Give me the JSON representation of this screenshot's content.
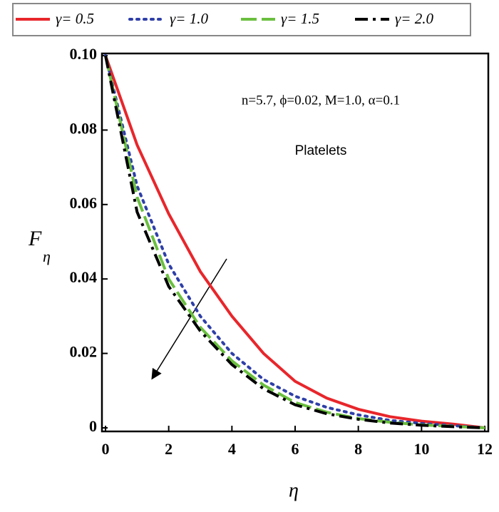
{
  "chart_data": {
    "type": "line",
    "x": [
      0,
      1,
      2,
      3,
      4,
      5,
      6,
      7,
      8,
      9,
      10,
      11,
      12
    ],
    "series": [
      {
        "name": "γ= 0.5",
        "color": "#e8262b",
        "dash": "solid",
        "values": [
          0.1,
          0.076,
          0.0575,
          0.042,
          0.03,
          0.02,
          0.0125,
          0.008,
          0.005,
          0.003,
          0.0018,
          0.001,
          0
        ]
      },
      {
        "name": "γ= 1.0",
        "color": "#2e3fa8",
        "dash": "dotted",
        "values": [
          0.1,
          0.065,
          0.044,
          0.03,
          0.02,
          0.013,
          0.0085,
          0.0055,
          0.0035,
          0.002,
          0.0012,
          0.0006,
          0
        ]
      },
      {
        "name": "γ= 1.5",
        "color": "#6abf3f",
        "dash": "dashed",
        "values": [
          0.1,
          0.062,
          0.04,
          0.027,
          0.018,
          0.0115,
          0.0068,
          0.0042,
          0.0025,
          0.0015,
          0.0008,
          0.0004,
          0
        ]
      },
      {
        "name": "γ= 2.0",
        "color": "#000000",
        "dash": "dashdot",
        "values": [
          0.1,
          0.058,
          0.038,
          0.026,
          0.017,
          0.0105,
          0.0062,
          0.0038,
          0.0023,
          0.0013,
          0.0007,
          0.0003,
          0
        ]
      }
    ],
    "xlim": [
      0,
      12
    ],
    "xticks": [
      0,
      2,
      4,
      6,
      8,
      10,
      12
    ],
    "ylim": [
      0,
      0.1
    ],
    "yticks": [
      0,
      0.02,
      0.04,
      0.06,
      0.08,
      {
        "value": 0.1,
        "label": "0.10"
      }
    ],
    "x_label": "η",
    "y_label": "F",
    "y_label_sub": "η",
    "annotation": "n=5.7, ϕ=0.02, M=1.0, α=0.1",
    "annotation2": "Platelets",
    "legend": "top"
  }
}
